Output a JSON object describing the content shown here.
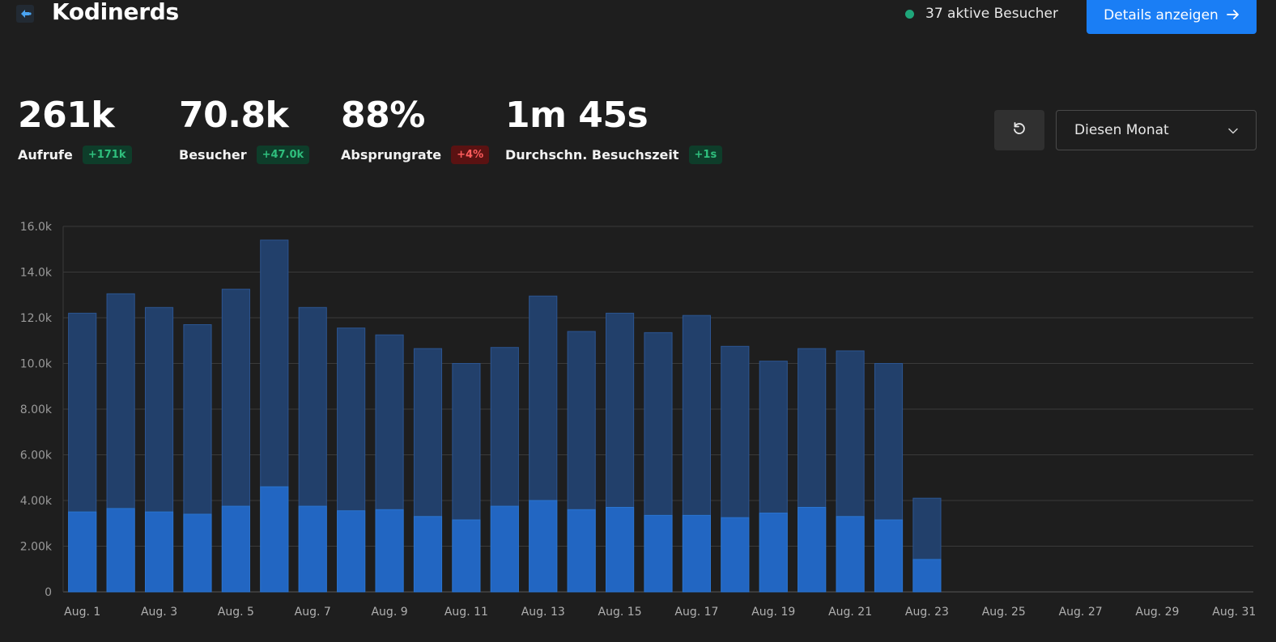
{
  "header": {
    "title": "Kodinerds",
    "active_visitors": "37 aktive Besucher",
    "details_label": "Details anzeigen",
    "accent_color": "#1a7ef5",
    "live_dot_color": "#1fa67a"
  },
  "metrics": [
    {
      "value": "261k",
      "label": "Aufrufe",
      "change": "+171k",
      "trend": "positive"
    },
    {
      "value": "70.8k",
      "label": "Besucher",
      "change": "+47.0k",
      "trend": "positive"
    },
    {
      "value": "88%",
      "label": "Absprungrate",
      "change": "+4%",
      "trend": "negative"
    },
    {
      "value": "1m 45s",
      "label": "Durchschn. Besuchszeit",
      "change": "+1s",
      "trend": "positive"
    }
  ],
  "controls": {
    "refresh_icon": "refresh-icon",
    "period_value": "Diesen Monat",
    "period_icon": "chevron-down-icon"
  },
  "chart_data": {
    "type": "bar",
    "stacked_overlay": true,
    "x_labels": [
      "Aug. 1",
      "Aug. 3",
      "Aug. 5",
      "Aug. 7",
      "Aug. 9",
      "Aug. 11",
      "Aug. 13",
      "Aug. 15",
      "Aug. 17",
      "Aug. 19",
      "Aug. 21",
      "Aug. 23",
      "Aug. 25",
      "Aug. 27",
      "Aug. 29",
      "Aug. 31"
    ],
    "y_ticks": [
      "0",
      "2.00k",
      "4.00k",
      "6.00k",
      "8.00k",
      "10.0k",
      "12.0k",
      "14.0k",
      "16.0k"
    ],
    "ylim": [
      0,
      16000
    ],
    "days": 31,
    "grid": true,
    "series": [
      {
        "color": "#22406b",
        "values": [
          12200,
          13050,
          12450,
          11700,
          13250,
          15400,
          12450,
          11550,
          11250,
          10650,
          10000,
          10700,
          12950,
          11400,
          12200,
          11350,
          12100,
          10750,
          10100,
          10650,
          10550,
          10000,
          4100
        ]
      },
      {
        "color": "#2266c2",
        "values": [
          3500,
          3650,
          3500,
          3400,
          3750,
          4600,
          3750,
          3550,
          3600,
          3300,
          3150,
          3750,
          4000,
          3600,
          3700,
          3350,
          3350,
          3250,
          3450,
          3700,
          3300,
          3150,
          1420
        ]
      }
    ]
  }
}
